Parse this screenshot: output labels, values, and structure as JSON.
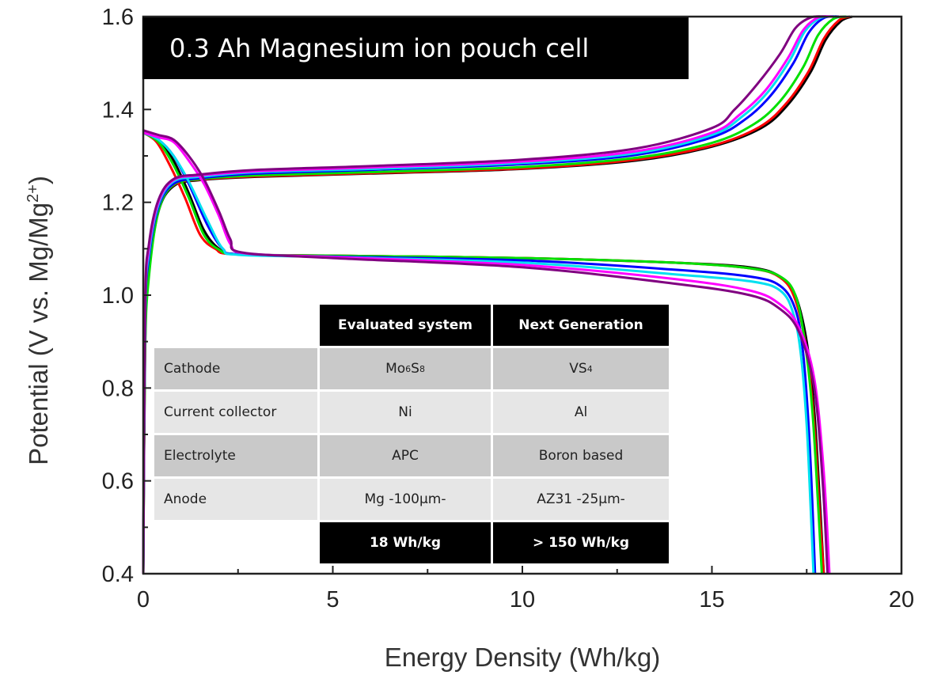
{
  "chart_data": {
    "type": "line",
    "title": "0.3 Ah Magnesium ion pouch cell",
    "xlabel": "Energy Density (Wh/kg)",
    "ylabel": "Potential (V vs. Mg/Mg2+)",
    "ylabel_parts": {
      "main": "Potential (V vs. Mg/Mg",
      "sup": "2+",
      "end": ")"
    },
    "xlim": [
      0,
      20
    ],
    "ylim": [
      0.4,
      1.6
    ],
    "xticks": [
      "0",
      "5",
      "10",
      "15",
      "20"
    ],
    "yticks": [
      "0.4",
      "0.6",
      "0.8",
      "1.0",
      "1.2",
      "1.4",
      "1.6"
    ],
    "grid": false,
    "legend": "none",
    "series": [
      {
        "color": "#000000",
        "charge": [
          [
            0,
            0.4
          ],
          [
            0.05,
            0.9
          ],
          [
            0.15,
            1.05
          ],
          [
            0.4,
            1.18
          ],
          [
            0.8,
            1.235
          ],
          [
            1.5,
            1.248
          ],
          [
            3,
            1.255
          ],
          [
            6,
            1.262
          ],
          [
            10,
            1.272
          ],
          [
            13,
            1.29
          ],
          [
            15,
            1.32
          ],
          [
            16.3,
            1.36
          ],
          [
            17,
            1.41
          ],
          [
            17.6,
            1.48
          ],
          [
            18,
            1.55
          ],
          [
            18.4,
            1.59
          ],
          [
            18.7,
            1.6
          ]
        ],
        "discharge": [
          [
            0,
            1.35
          ],
          [
            0.4,
            1.335
          ],
          [
            0.8,
            1.29
          ],
          [
            1.2,
            1.22
          ],
          [
            1.6,
            1.14
          ],
          [
            2.0,
            1.1
          ],
          [
            2.5,
            1.088
          ],
          [
            5,
            1.085
          ],
          [
            10,
            1.08
          ],
          [
            14,
            1.07
          ],
          [
            16,
            1.06
          ],
          [
            16.8,
            1.04
          ],
          [
            17.2,
            1.0
          ],
          [
            17.5,
            0.9
          ],
          [
            17.7,
            0.75
          ],
          [
            17.85,
            0.55
          ],
          [
            17.95,
            0.4
          ]
        ]
      },
      {
        "color": "#ff0000",
        "charge": [
          [
            0,
            0.4
          ],
          [
            0.05,
            0.92
          ],
          [
            0.15,
            1.06
          ],
          [
            0.4,
            1.185
          ],
          [
            0.8,
            1.237
          ],
          [
            1.5,
            1.249
          ],
          [
            3,
            1.256
          ],
          [
            6,
            1.263
          ],
          [
            10,
            1.273
          ],
          [
            13,
            1.292
          ],
          [
            15,
            1.322
          ],
          [
            16.25,
            1.362
          ],
          [
            16.95,
            1.412
          ],
          [
            17.55,
            1.482
          ],
          [
            17.95,
            1.552
          ],
          [
            18.35,
            1.592
          ],
          [
            18.65,
            1.6
          ]
        ],
        "discharge": [
          [
            0,
            1.35
          ],
          [
            0.35,
            1.33
          ],
          [
            0.7,
            1.28
          ],
          [
            1.1,
            1.21
          ],
          [
            1.5,
            1.13
          ],
          [
            1.9,
            1.1
          ],
          [
            2.4,
            1.088
          ],
          [
            5,
            1.085
          ],
          [
            10,
            1.08
          ],
          [
            14,
            1.07
          ],
          [
            16,
            1.058
          ],
          [
            16.8,
            1.038
          ],
          [
            17.2,
            0.99
          ],
          [
            17.5,
            0.88
          ],
          [
            17.7,
            0.72
          ],
          [
            17.85,
            0.52
          ],
          [
            17.95,
            0.4
          ]
        ]
      },
      {
        "color": "#00e000",
        "charge": [
          [
            0,
            0.4
          ],
          [
            0.05,
            0.88
          ],
          [
            0.15,
            1.04
          ],
          [
            0.4,
            1.18
          ],
          [
            0.8,
            1.238
          ],
          [
            1.5,
            1.25
          ],
          [
            3,
            1.258
          ],
          [
            6,
            1.265
          ],
          [
            10,
            1.276
          ],
          [
            13,
            1.296
          ],
          [
            15,
            1.328
          ],
          [
            16.1,
            1.368
          ],
          [
            16.8,
            1.418
          ],
          [
            17.4,
            1.49
          ],
          [
            17.8,
            1.56
          ],
          [
            18.2,
            1.595
          ],
          [
            18.55,
            1.6
          ]
        ],
        "discharge": [
          [
            0,
            1.35
          ],
          [
            0.4,
            1.33
          ],
          [
            0.8,
            1.28
          ],
          [
            1.2,
            1.21
          ],
          [
            1.6,
            1.13
          ],
          [
            2.0,
            1.098
          ],
          [
            2.5,
            1.088
          ],
          [
            5,
            1.085
          ],
          [
            10,
            1.08
          ],
          [
            14,
            1.07
          ],
          [
            16,
            1.058
          ],
          [
            16.8,
            1.04
          ],
          [
            17.2,
            1.0
          ],
          [
            17.45,
            0.9
          ],
          [
            17.65,
            0.75
          ],
          [
            17.8,
            0.55
          ],
          [
            17.9,
            0.4
          ]
        ]
      },
      {
        "color": "#0000ff",
        "charge": [
          [
            0,
            0.4
          ],
          [
            0.05,
            0.95
          ],
          [
            0.15,
            1.08
          ],
          [
            0.4,
            1.19
          ],
          [
            0.8,
            1.24
          ],
          [
            1.5,
            1.252
          ],
          [
            3,
            1.262
          ],
          [
            6,
            1.27
          ],
          [
            10,
            1.282
          ],
          [
            13,
            1.302
          ],
          [
            15,
            1.34
          ],
          [
            15.9,
            1.38
          ],
          [
            16.55,
            1.43
          ],
          [
            17.15,
            1.5
          ],
          [
            17.55,
            1.565
          ],
          [
            17.95,
            1.597
          ],
          [
            18.35,
            1.6
          ]
        ],
        "discharge": [
          [
            0,
            1.35
          ],
          [
            0.4,
            1.335
          ],
          [
            0.8,
            1.3
          ],
          [
            1.2,
            1.24
          ],
          [
            1.7,
            1.15
          ],
          [
            2.1,
            1.1
          ],
          [
            2.5,
            1.088
          ],
          [
            5,
            1.083
          ],
          [
            10,
            1.075
          ],
          [
            14,
            1.055
          ],
          [
            16,
            1.04
          ],
          [
            16.8,
            1.02
          ],
          [
            17.2,
            0.97
          ],
          [
            17.4,
            0.88
          ],
          [
            17.55,
            0.72
          ],
          [
            17.65,
            0.55
          ],
          [
            17.72,
            0.4
          ]
        ]
      },
      {
        "color": "#00e0f0",
        "charge": [
          [
            0,
            0.4
          ],
          [
            0.05,
            0.96
          ],
          [
            0.15,
            1.09
          ],
          [
            0.4,
            1.195
          ],
          [
            0.8,
            1.245
          ],
          [
            1.5,
            1.255
          ],
          [
            3,
            1.265
          ],
          [
            6,
            1.272
          ],
          [
            10,
            1.285
          ],
          [
            13,
            1.306
          ],
          [
            15,
            1.345
          ],
          [
            15.8,
            1.385
          ],
          [
            16.45,
            1.435
          ],
          [
            17.05,
            1.505
          ],
          [
            17.45,
            1.568
          ],
          [
            17.85,
            1.597
          ],
          [
            18.25,
            1.6
          ]
        ],
        "discharge": [
          [
            0,
            1.35
          ],
          [
            0.4,
            1.335
          ],
          [
            0.8,
            1.3
          ],
          [
            1.2,
            1.245
          ],
          [
            1.7,
            1.16
          ],
          [
            2.1,
            1.1
          ],
          [
            2.5,
            1.087
          ],
          [
            5,
            1.082
          ],
          [
            10,
            1.07
          ],
          [
            14,
            1.045
          ],
          [
            16,
            1.03
          ],
          [
            16.8,
            1.01
          ],
          [
            17.15,
            0.96
          ],
          [
            17.35,
            0.87
          ],
          [
            17.5,
            0.72
          ],
          [
            17.6,
            0.55
          ],
          [
            17.68,
            0.4
          ]
        ]
      },
      {
        "color": "#ff00ff",
        "charge": [
          [
            0,
            0.4
          ],
          [
            0.05,
            0.97
          ],
          [
            0.15,
            1.1
          ],
          [
            0.4,
            1.2
          ],
          [
            0.8,
            1.248
          ],
          [
            1.5,
            1.258
          ],
          [
            3,
            1.267
          ],
          [
            6,
            1.275
          ],
          [
            10,
            1.288
          ],
          [
            13,
            1.31
          ],
          [
            15,
            1.35
          ],
          [
            15.75,
            1.39
          ],
          [
            16.4,
            1.44
          ],
          [
            17.0,
            1.51
          ],
          [
            17.4,
            1.57
          ],
          [
            17.8,
            1.598
          ],
          [
            18.2,
            1.6
          ]
        ],
        "discharge": [
          [
            0,
            1.35
          ],
          [
            0.4,
            1.34
          ],
          [
            0.8,
            1.33
          ],
          [
            1.2,
            1.29
          ],
          [
            1.6,
            1.24
          ],
          [
            2.0,
            1.17
          ],
          [
            2.3,
            1.11
          ],
          [
            2.7,
            1.09
          ],
          [
            5,
            1.082
          ],
          [
            10,
            1.065
          ],
          [
            14,
            1.035
          ],
          [
            16,
            1.01
          ],
          [
            16.8,
            0.98
          ],
          [
            17.3,
            0.93
          ],
          [
            17.7,
            0.82
          ],
          [
            17.95,
            0.62
          ],
          [
            18.1,
            0.4
          ]
        ]
      },
      {
        "color": "#800080",
        "charge": [
          [
            0,
            0.4
          ],
          [
            0.05,
            0.98
          ],
          [
            0.15,
            1.11
          ],
          [
            0.4,
            1.205
          ],
          [
            0.8,
            1.25
          ],
          [
            1.5,
            1.26
          ],
          [
            3,
            1.27
          ],
          [
            6,
            1.278
          ],
          [
            10,
            1.292
          ],
          [
            13,
            1.316
          ],
          [
            15,
            1.36
          ],
          [
            15.6,
            1.4
          ],
          [
            16.2,
            1.455
          ],
          [
            16.8,
            1.52
          ],
          [
            17.2,
            1.575
          ],
          [
            17.6,
            1.598
          ],
          [
            18.0,
            1.6
          ]
        ],
        "discharge": [
          [
            0,
            1.355
          ],
          [
            0.4,
            1.345
          ],
          [
            0.8,
            1.335
          ],
          [
            1.2,
            1.3
          ],
          [
            1.6,
            1.25
          ],
          [
            2.0,
            1.18
          ],
          [
            2.3,
            1.12
          ],
          [
            2.6,
            1.092
          ],
          [
            5,
            1.08
          ],
          [
            10,
            1.06
          ],
          [
            14,
            1.025
          ],
          [
            16,
            1.0
          ],
          [
            16.8,
            0.97
          ],
          [
            17.3,
            0.92
          ],
          [
            17.7,
            0.8
          ],
          [
            17.92,
            0.6
          ],
          [
            18.05,
            0.4
          ]
        ]
      }
    ]
  },
  "table": {
    "headers": [
      "",
      "Evaluated system",
      "Next Generation"
    ],
    "rows": [
      {
        "label": "Cathode",
        "evaluated": {
          "base": "Mo",
          "s1": "6",
          "mid": "S",
          "s2": "8"
        },
        "next": {
          "base": "VS",
          "s1": "4"
        }
      },
      {
        "label": "Current collector",
        "evaluated": "Ni",
        "next": "Al"
      },
      {
        "label": "Electrolyte",
        "evaluated": "APC",
        "next": "Boron based"
      },
      {
        "label": "Anode",
        "evaluated": "Mg -100µm-",
        "next": "AZ31 -25µm-"
      }
    ],
    "footer": [
      "18 Wh/kg",
      "> 150 Wh/kg"
    ]
  }
}
